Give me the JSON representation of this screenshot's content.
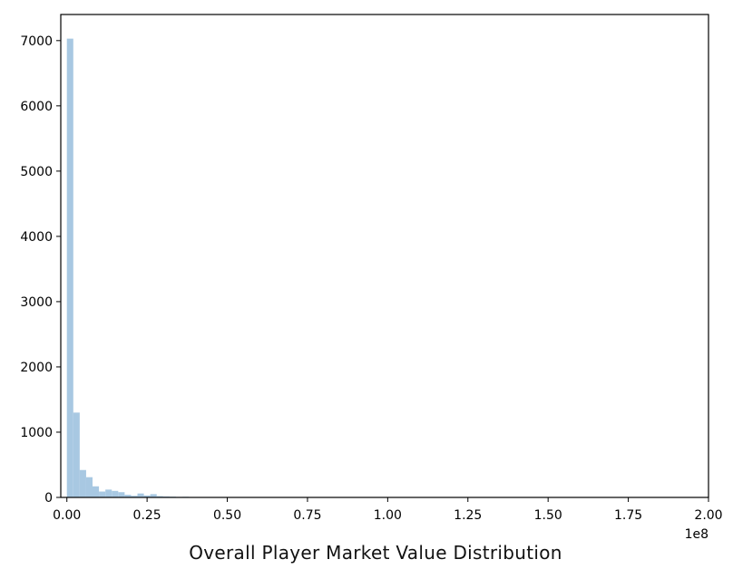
{
  "chart_data": {
    "type": "bar",
    "subtype": "histogram",
    "title": "Overall Player Market Value Distribution",
    "xlabel": "",
    "ylabel": "",
    "x_offset_text": "1e8",
    "x_multiplier": 100000000,
    "xlim": [
      -0.019,
      2.0
    ],
    "ylim": [
      0,
      7400
    ],
    "bin_width": 0.02,
    "x_ticks": [
      0.0,
      0.25,
      0.5,
      0.75,
      1.0,
      1.25,
      1.5,
      1.75,
      2.0
    ],
    "x_tick_labels": [
      "0.00",
      "0.25",
      "0.50",
      "0.75",
      "1.00",
      "1.25",
      "1.50",
      "1.75",
      "2.00"
    ],
    "y_ticks": [
      0,
      1000,
      2000,
      3000,
      4000,
      5000,
      6000,
      7000
    ],
    "y_tick_labels": [
      "0",
      "1000",
      "2000",
      "3000",
      "4000",
      "5000",
      "6000",
      "7000"
    ],
    "grid": false,
    "legend": "none",
    "bar_color": "#a8c8e2",
    "series": [
      {
        "x": [
          0.0,
          0.02,
          0.04,
          0.06,
          0.08,
          0.1,
          0.12,
          0.14,
          0.16,
          0.18,
          0.2,
          0.22,
          0.24,
          0.26,
          0.28,
          0.3,
          0.32,
          0.34,
          0.36,
          0.38,
          0.4,
          0.42,
          0.44,
          0.46,
          0.48,
          0.5,
          0.52,
          0.54,
          0.56,
          0.58,
          0.6
        ],
        "values": [
          7030,
          1300,
          420,
          310,
          170,
          90,
          120,
          100,
          80,
          40,
          25,
          60,
          30,
          50,
          20,
          15,
          12,
          8,
          10,
          6,
          5,
          4,
          3,
          3,
          2,
          2,
          2,
          1,
          1,
          1,
          1
        ]
      }
    ]
  }
}
